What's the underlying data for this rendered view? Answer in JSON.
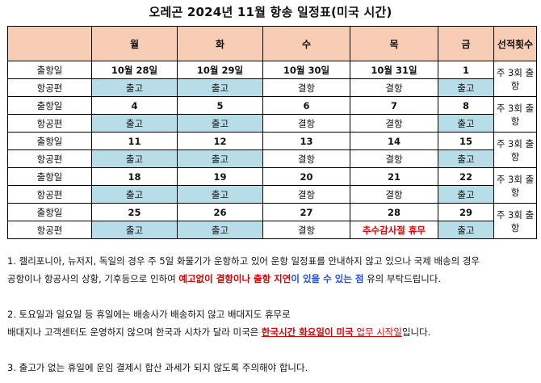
{
  "title": "오레곤 2024년 11월 항송 일정표(미국 시간)",
  "headers": [
    "",
    "월",
    "화",
    "수",
    "목",
    "금",
    "선적횟수"
  ],
  "rows": [
    {
      "dep_label": "출항일",
      "dates": [
        "10월 28일",
        "10월 29일",
        "10월 30일",
        "10월 31일",
        "1"
      ],
      "flight_label": "항공편",
      "flights": [
        "출고",
        "출고",
        "결항",
        "결항",
        "출고"
      ],
      "count": "주 3회 출항"
    },
    {
      "dep_label": "출항일",
      "dates": [
        "4",
        "5",
        "6",
        "7",
        "8"
      ],
      "flight_label": "항공편",
      "flights": [
        "출고",
        "출고",
        "결항",
        "결항",
        "출고"
      ],
      "count": "주 3회 출항"
    },
    {
      "dep_label": "출항일",
      "dates": [
        "11",
        "12",
        "13",
        "14",
        "15"
      ],
      "flight_label": "항공편",
      "flights": [
        "출고",
        "출고",
        "결항",
        "결항",
        "출고"
      ],
      "count": "주 3회 출항"
    },
    {
      "dep_label": "출항일",
      "dates": [
        "18",
        "19",
        "20",
        "21",
        "22"
      ],
      "flight_label": "항공편",
      "flights": [
        "출고",
        "출고",
        "결항",
        "결항",
        "출고"
      ],
      "count": "주 3회 출항"
    },
    {
      "dep_label": "출항일",
      "dates": [
        "25",
        "26",
        "27",
        "28",
        "29"
      ],
      "flight_label": "항공편",
      "flights": [
        "출고",
        "출고",
        "결항",
        "추수감사절 휴무",
        "출고"
      ],
      "count": "주 3회 출항"
    }
  ],
  "notes": {
    "n1_a": "1. 캘리포니아, 뉴저지, 독일의 경우 주 5일 화물기가 운항하고 있어 운항 일정표를 안내하지 않고 있으나 국제 배송의 경우",
    "n1_b": "공항이나 항공사의 상황, 기후등으로 인하여 ",
    "n1_red": "예고없이 결항이나 출항 지연",
    "n1_mid": "이 있을 수 있는 점",
    "n1_end": " 유의 부탁드립니다.",
    "n2_a": "2. 토요일과 일요일 등 휴일에는 배송사가 배송하지 않고 배대지도 휴무로",
    "n2_b": "배대지나 고객센터도 운영하지 않으며 한국과 시차가 달라 미국은 ",
    "n2_red": "한국시간 화요일이 미국",
    "n2_mid": " 업무 시작일",
    "n2_end": "입니다.",
    "n3": "3. 출고가 없는 휴일에 운임 결제시 합산 과세가 되지 않도록 주의해야 합니다."
  }
}
